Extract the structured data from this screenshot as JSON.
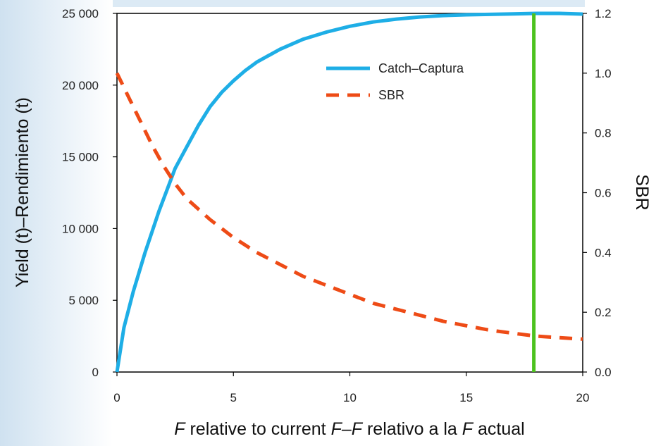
{
  "chart_data": {
    "type": "line",
    "xlabel_parts": [
      "F",
      " relative to current ",
      "F",
      "–",
      "F",
      " relativo a la ",
      "F",
      " actual"
    ],
    "ylabel": "Yield (t)–Rendimiento (t)",
    "y2label": "SBR",
    "xlim": [
      0,
      20
    ],
    "ylim": [
      0,
      25000
    ],
    "y2lim": [
      0,
      1.2
    ],
    "x_ticks": [
      "0",
      "5",
      "10",
      "15",
      "20"
    ],
    "x_tick_values": [
      0,
      5,
      10,
      15,
      20
    ],
    "y_ticks": [
      "0",
      "5 000",
      "10 000",
      "15 000",
      "20 000",
      "25 000"
    ],
    "y_tick_values": [
      0,
      5000,
      10000,
      15000,
      20000,
      25000
    ],
    "y2_ticks": [
      "0.0",
      "0.2",
      "0.4",
      "0.6",
      "0.8",
      "1.0",
      "1.2"
    ],
    "y2_tick_values": [
      0,
      0.2,
      0.4,
      0.6,
      0.8,
      1.0,
      1.2
    ],
    "legend_position": "top-right",
    "series": [
      {
        "name": "Catch–Captura",
        "axis": "left",
        "style": "solid",
        "color": "#1EAEE6",
        "x": [
          0,
          0.3,
          0.7,
          1.2,
          1.8,
          2.5,
          3.0,
          3.5,
          4.0,
          4.5,
          5.0,
          5.5,
          6.0,
          7.0,
          8.0,
          9.0,
          10.0,
          11.0,
          12.0,
          13.0,
          14.0,
          15.0,
          16.0,
          17.0,
          18.0,
          19.0,
          20.0
        ],
        "y": [
          0,
          3100,
          5600,
          8300,
          11200,
          14200,
          15700,
          17200,
          18500,
          19500,
          20300,
          21000,
          21600,
          22500,
          23200,
          23700,
          24100,
          24400,
          24600,
          24750,
          24850,
          24900,
          24930,
          24960,
          25000,
          25000,
          24950
        ]
      },
      {
        "name": "SBR",
        "axis": "right",
        "style": "dashed",
        "color": "#EE4B16",
        "x": [
          0,
          0.5,
          1.0,
          1.5,
          2.0,
          2.5,
          3.0,
          4.0,
          5.0,
          6.0,
          7.0,
          8.0,
          9.0,
          10.0,
          11.0,
          12.0,
          13.0,
          14.0,
          15.0,
          16.0,
          17.0,
          18.0,
          19.0,
          20.0
        ],
        "y": [
          1.0,
          0.92,
          0.84,
          0.76,
          0.69,
          0.63,
          0.58,
          0.51,
          0.45,
          0.4,
          0.36,
          0.32,
          0.29,
          0.26,
          0.23,
          0.21,
          0.19,
          0.17,
          0.155,
          0.14,
          0.13,
          0.12,
          0.115,
          0.11
        ]
      }
    ],
    "reference_lines": [
      {
        "x": 17.9,
        "color": "#4CC21E"
      }
    ]
  }
}
